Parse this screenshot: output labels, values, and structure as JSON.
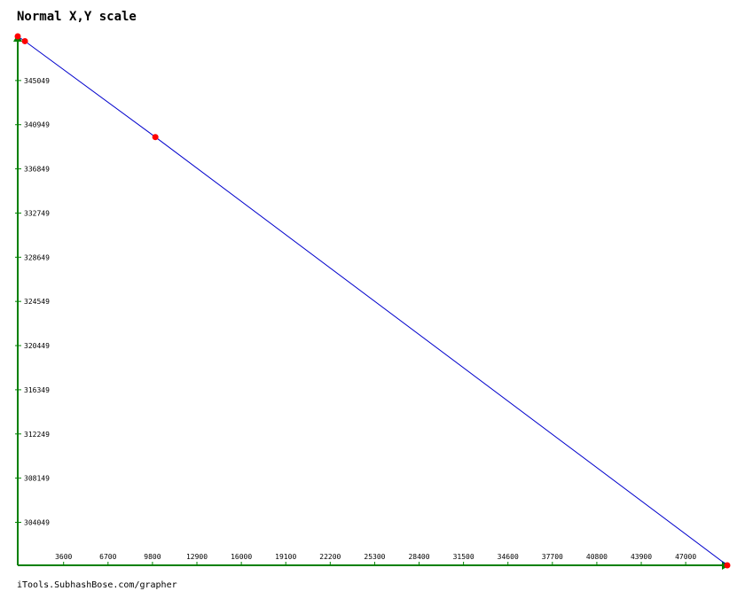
{
  "chart_data": {
    "type": "line",
    "title": "Normal X,Y scale",
    "xlabel": "",
    "ylabel": "",
    "x_ticks": [
      3600,
      6700,
      9800,
      12900,
      16000,
      19100,
      22200,
      25300,
      28400,
      31500,
      34600,
      37700,
      40800,
      43900,
      47000
    ],
    "y_ticks": [
      345049,
      340949,
      336849,
      332749,
      328649,
      324549,
      320449,
      316349,
      312249,
      308149,
      304049
    ],
    "xlim": [
      400,
      49900
    ],
    "ylim": [
      300059,
      349149
    ],
    "series": [
      {
        "points": [
          {
            "x": 400,
            "y": 349149
          },
          {
            "x": 900,
            "y": 348700
          },
          {
            "x": 10000,
            "y": 339800
          },
          {
            "x": 49900,
            "y": 300059
          }
        ]
      }
    ],
    "line_color": "#0000cc",
    "marker_color": "#ff0000",
    "axis_color": "#008000",
    "grid": false,
    "legend": "none"
  },
  "footer": {
    "text": "iTools.SubhashBose.com/grapher"
  }
}
